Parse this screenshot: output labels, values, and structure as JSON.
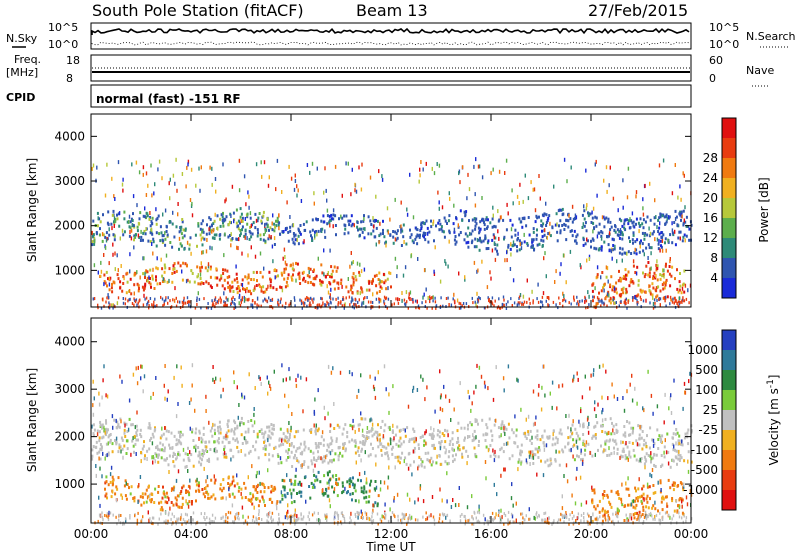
{
  "header": {
    "title": "South Pole Station (fitACF)",
    "beam": "Beam 13",
    "date": "27/Feb/2015"
  },
  "status_panel": {
    "nsky_label": "N.Sky",
    "nsky_ticks": [
      "10^5",
      "10^0"
    ],
    "nsearch_label": "N.Search",
    "nsearch_ticks": [
      "10^5",
      "10^0"
    ],
    "freq_label": "Freq.",
    "freq_unit": "[MHz]",
    "freq_ticks": [
      "18",
      "8"
    ],
    "nave_label": "Nave",
    "nave_ticks": [
      "60",
      "0"
    ],
    "cpid_label": "CPID",
    "cpid_value": "normal (fast) -151 RF"
  },
  "chart_data": [
    {
      "type": "heatmap",
      "name": "power",
      "ylabel": "Slant Range [km]",
      "ylim": [
        180,
        4500
      ],
      "yticks": [
        "1000",
        "2000",
        "3000",
        "4000"
      ],
      "xlim": [
        0,
        24
      ],
      "colorbar": {
        "label": "Power [dB]",
        "ticks": [
          "4",
          "8",
          "12",
          "16",
          "20",
          "24",
          "28"
        ],
        "colors": [
          "#1a2bd8",
          "#2f55b0",
          "#2e8a78",
          "#5cae4c",
          "#b6c83a",
          "#f0b020",
          "#f07a10",
          "#e83c10",
          "#e01010"
        ]
      },
      "bands": [
        {
          "start": 0.0,
          "end": 7.5,
          "lo": 1600,
          "hi": 2300,
          "level": "mid"
        },
        {
          "start": 7.5,
          "end": 14.5,
          "lo": 1700,
          "hi": 2200,
          "level": "low"
        },
        {
          "start": 14.5,
          "end": 24.0,
          "lo": 1500,
          "hi": 2300,
          "level": "low"
        },
        {
          "start": 0.3,
          "end": 12.0,
          "lo": 600,
          "hi": 1100,
          "level": "high"
        },
        {
          "start": 20.0,
          "end": 23.7,
          "lo": 300,
          "hi": 1100,
          "level": "high"
        }
      ]
    },
    {
      "type": "heatmap",
      "name": "velocity",
      "ylabel": "Slant Range [km]",
      "ylim": [
        180,
        4500
      ],
      "yticks": [
        "1000",
        "2000",
        "3000",
        "4000"
      ],
      "xlim": [
        0,
        24
      ],
      "xticks": [
        "00:00",
        "04:00",
        "08:00",
        "12:00",
        "16:00",
        "20:00",
        "00:00"
      ],
      "xlabel": "Time UT",
      "colorbar": {
        "label": "Velocity [m s^-1]",
        "ticks": [
          "1000",
          "500",
          "100",
          "25",
          "-25",
          "-100",
          "-500",
          "-1000"
        ],
        "colors": [
          "#2540c0",
          "#2f7a9a",
          "#2e8a40",
          "#7acb3a",
          "#c0c0c0",
          "#f0b020",
          "#f07a10",
          "#e83c10",
          "#e01010"
        ]
      },
      "bands": [
        {
          "start": 0.0,
          "end": 24.0,
          "lo": 1500,
          "hi": 2300,
          "level": "gray"
        },
        {
          "start": 0.5,
          "end": 7.5,
          "lo": 600,
          "hi": 1100,
          "level": "orange"
        },
        {
          "start": 7.5,
          "end": 11.5,
          "lo": 650,
          "hi": 1200,
          "level": "green"
        },
        {
          "start": 20.0,
          "end": 23.7,
          "lo": 300,
          "hi": 1000,
          "level": "orange"
        }
      ]
    }
  ]
}
